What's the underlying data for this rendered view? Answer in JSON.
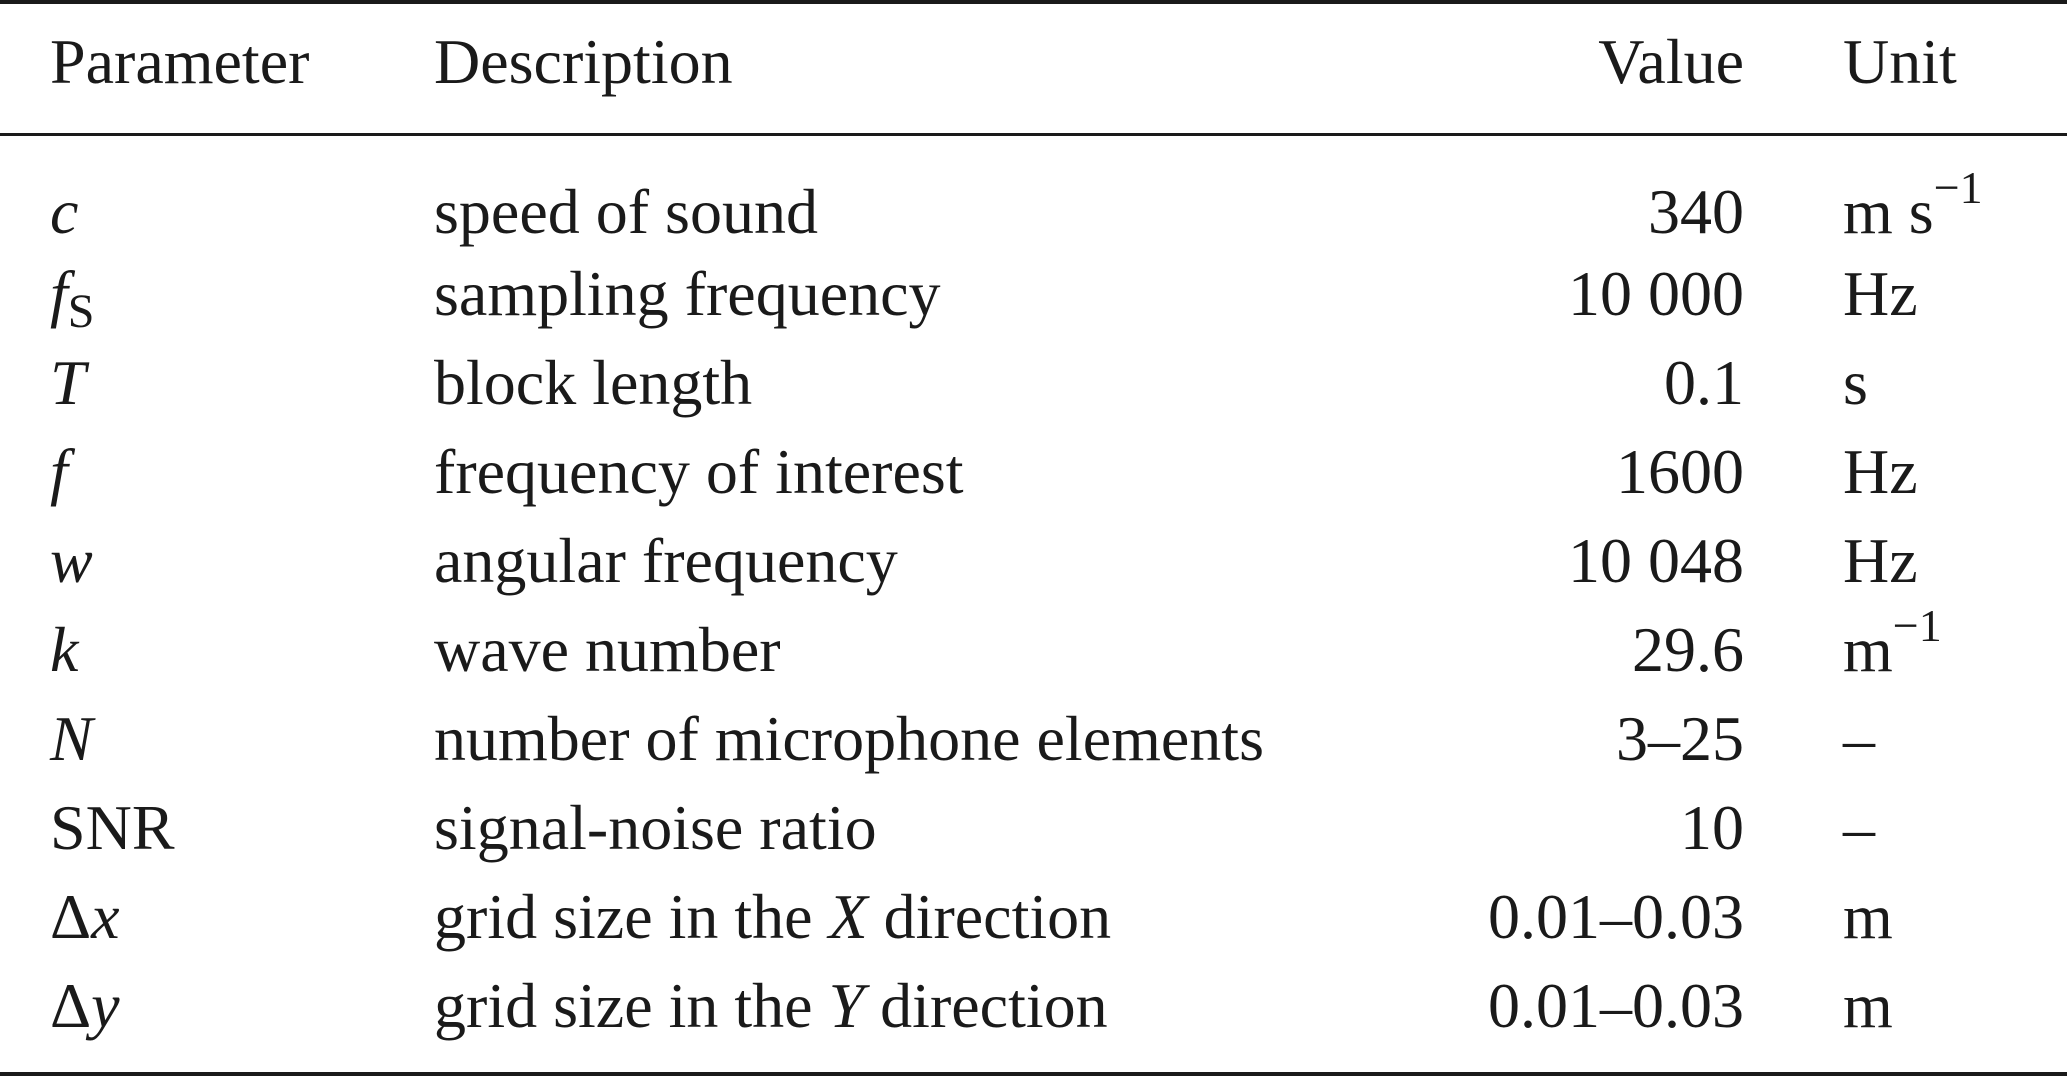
{
  "table": {
    "headers": {
      "parameter": "Parameter",
      "description": "Description",
      "value": "Value",
      "unit": "Unit"
    },
    "rows": [
      {
        "symbol": "c",
        "symbol_sub": "",
        "description": "speed of sound",
        "value": "340",
        "unit": "m s",
        "unit_exp": "−1"
      },
      {
        "symbol": "f",
        "symbol_sub": "S",
        "description": "sampling frequency",
        "value": "10 000",
        "unit": "Hz",
        "unit_exp": ""
      },
      {
        "symbol": "T",
        "symbol_sub": "",
        "description": "block length",
        "value": "0.1",
        "unit": "s",
        "unit_exp": ""
      },
      {
        "symbol": "f",
        "symbol_sub": "",
        "description": "frequency of interest",
        "value": "1600",
        "unit": "Hz",
        "unit_exp": ""
      },
      {
        "symbol": "w",
        "symbol_sub": "",
        "description": "angular frequency",
        "value": "10 048",
        "unit": "Hz",
        "unit_exp": ""
      },
      {
        "symbol": "k",
        "symbol_sub": "",
        "description": "wave number",
        "value": "29.6",
        "unit": "m",
        "unit_exp": "−1"
      },
      {
        "symbol": "N",
        "symbol_sub": "",
        "description": "number of microphone elements",
        "value": "3–25",
        "unit": "–",
        "unit_exp": ""
      },
      {
        "symbol": "SNR",
        "symbol_sub": "",
        "description": "signal-noise ratio",
        "value": "10",
        "unit": "–",
        "unit_exp": ""
      },
      {
        "symbol_prefix": "Δ",
        "symbol": "x",
        "description_pre": "grid size in the ",
        "description_var": "X",
        "description_post": " direction",
        "value": "0.01–0.03",
        "unit": "m"
      },
      {
        "symbol_prefix": "Δ",
        "symbol": "y",
        "description_pre": "grid size in the ",
        "description_var": "Y",
        "description_post": " direction",
        "value": "0.01–0.03",
        "unit": "m"
      }
    ]
  }
}
